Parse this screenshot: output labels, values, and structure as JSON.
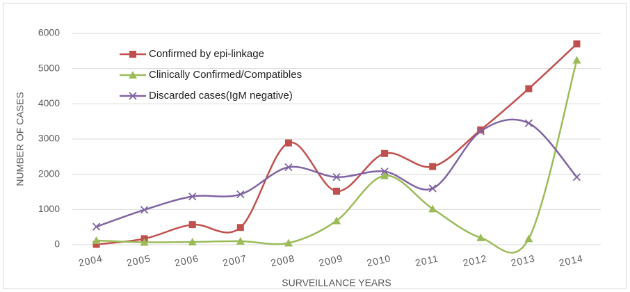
{
  "chart_data": {
    "type": "line",
    "smooth": true,
    "x_label": "SURVEILLANCE YEARS",
    "y_label": "NUMBER OF CASES",
    "categories": [
      "2004",
      "2005",
      "2006",
      "2007",
      "2008",
      "2009",
      "2010",
      "2011",
      "2012",
      "2013",
      "2014"
    ],
    "series": [
      {
        "name": "Confirmed by epi-linkage",
        "color": "#c0504d",
        "marker": "square",
        "values": [
          10,
          170,
          570,
          490,
          2890,
          1520,
          2590,
          2220,
          3260,
          4430,
          5700
        ]
      },
      {
        "name": "Clinically Confirmed/Compatibles",
        "color": "#9bbb59",
        "marker": "triangle",
        "values": [
          120,
          70,
          80,
          100,
          50,
          680,
          1960,
          1020,
          200,
          170,
          5240
        ]
      },
      {
        "name": "Discarded cases(IgM negative)",
        "color": "#8064a2",
        "marker": "x",
        "values": [
          510,
          990,
          1370,
          1430,
          2200,
          1920,
          2080,
          1600,
          3220,
          3450,
          1920
        ]
      }
    ],
    "ylim": [
      0,
      6000
    ],
    "yticks": [
      0,
      1000,
      2000,
      3000,
      4000,
      5000,
      6000
    ],
    "grid": true
  }
}
